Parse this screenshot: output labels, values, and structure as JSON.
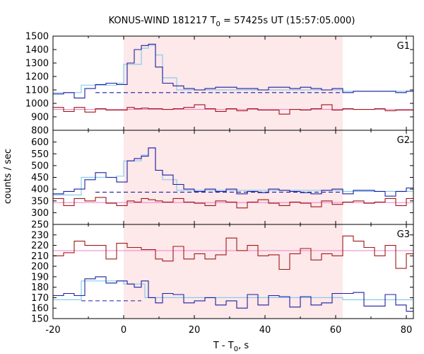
{
  "chart_data": {
    "type": "line",
    "title_main": "KONUS-WIND 181217 T",
    "title_sub": "0",
    "title_rest": " = 57425s UT (15:57:05.000)",
    "xlabel_main": "T - T",
    "xlabel_sub": "0",
    "xlabel_rest": ", s",
    "ylabel": "counts / sec",
    "xlim": [
      -20,
      82
    ],
    "xticks": [
      "-20",
      "0",
      "20",
      "40",
      "60",
      "80"
    ],
    "xtick_values": [
      -20,
      0,
      20,
      40,
      60,
      80
    ],
    "shade_interval": [
      0,
      62
    ],
    "colors": {
      "shade": "#fde8ea",
      "blue": "#1f1fa0",
      "cyan": "#87cdeb",
      "red": "#a01818",
      "pink": "#f080c8",
      "dashed": "#1f1fa0"
    },
    "panels": [
      {
        "label": "G1",
        "ylim": [
          800,
          1500
        ],
        "yticks": [
          "800",
          "900",
          "1000",
          "1100",
          "1200",
          "1300",
          "1400",
          "1500"
        ],
        "ytick_values": [
          800,
          900,
          1000,
          1100,
          1200,
          1300,
          1400,
          1500
        ],
        "blue_edges": [
          -20,
          -17,
          -14,
          -11,
          -8,
          -5,
          -2,
          1,
          3,
          5,
          7,
          9,
          11,
          14,
          17,
          20,
          23,
          26,
          29,
          32,
          35,
          38,
          41,
          44,
          47,
          50,
          53,
          56,
          59,
          62,
          65,
          68,
          71,
          74,
          77,
          80,
          83
        ],
        "blue_values": [
          1070,
          1080,
          1040,
          1110,
          1140,
          1150,
          1140,
          1300,
          1400,
          1430,
          1440,
          1270,
          1150,
          1130,
          1110,
          1100,
          1110,
          1120,
          1120,
          1110,
          1110,
          1100,
          1120,
          1120,
          1110,
          1120,
          1110,
          1100,
          1110,
          1080,
          1090,
          1090,
          1090,
          1090,
          1080,
          1090
        ],
        "cyan_edges": [
          -20,
          -12,
          -2,
          0,
          5,
          7,
          9,
          11,
          15,
          62,
          82
        ],
        "cyan_values": [
          1080,
          1135,
          1150,
          1290,
          1410,
          1430,
          1360,
          1190,
          1100,
          1090,
          1085
        ],
        "dash_range": [
          -8,
          62
        ],
        "dash_value": 1080,
        "red_edges": [
          -20,
          -17,
          -14,
          -11,
          -8,
          -5,
          -2,
          1,
          3,
          5,
          7,
          9,
          11,
          14,
          17,
          20,
          23,
          26,
          29,
          32,
          35,
          38,
          41,
          44,
          47,
          50,
          53,
          56,
          59,
          62,
          65,
          68,
          71,
          74,
          77,
          80,
          83
        ],
        "red_values": [
          970,
          940,
          970,
          935,
          960,
          950,
          950,
          970,
          960,
          965,
          960,
          960,
          955,
          960,
          970,
          990,
          960,
          940,
          960,
          945,
          960,
          950,
          950,
          920,
          955,
          950,
          960,
          990,
          950,
          960,
          955,
          955,
          960,
          945,
          950,
          950
        ],
        "pink_value": 955
      },
      {
        "label": "G2",
        "ylim": [
          250,
          650
        ],
        "yticks": [
          "250",
          "300",
          "350",
          "400",
          "450",
          "500",
          "550",
          "600"
        ],
        "ytick_values": [
          250,
          300,
          350,
          400,
          450,
          500,
          550,
          600
        ],
        "blue_edges": [
          -20,
          -17,
          -14,
          -11,
          -8,
          -5,
          -2,
          1,
          3,
          5,
          7,
          9,
          11,
          14,
          17,
          20,
          23,
          26,
          29,
          32,
          35,
          38,
          41,
          44,
          47,
          50,
          53,
          56,
          59,
          62,
          65,
          68,
          71,
          74,
          77,
          80,
          83
        ],
        "blue_values": [
          380,
          390,
          400,
          440,
          470,
          450,
          430,
          520,
          530,
          540,
          575,
          480,
          460,
          420,
          400,
          390,
          400,
          390,
          400,
          380,
          390,
          385,
          400,
          395,
          390,
          385,
          380,
          395,
          400,
          380,
          395,
          395,
          390,
          370,
          390,
          405
        ],
        "cyan_edges": [
          -20,
          -12,
          -2,
          0,
          5,
          7,
          9,
          11,
          15,
          62,
          82
        ],
        "cyan_values": [
          375,
          450,
          455,
          520,
          545,
          575,
          480,
          440,
          395,
          390,
          388
        ],
        "dash_range": [
          -8,
          62
        ],
        "dash_value": 387,
        "red_edges": [
          -20,
          -17,
          -14,
          -11,
          -8,
          -5,
          -2,
          1,
          3,
          5,
          7,
          9,
          11,
          14,
          17,
          20,
          23,
          26,
          29,
          32,
          35,
          38,
          41,
          44,
          47,
          50,
          53,
          56,
          59,
          62,
          65,
          68,
          71,
          74,
          77,
          80,
          83
        ],
        "red_values": [
          360,
          330,
          360,
          350,
          365,
          340,
          330,
          350,
          345,
          360,
          355,
          350,
          345,
          360,
          345,
          340,
          330,
          350,
          345,
          320,
          345,
          355,
          340,
          330,
          345,
          340,
          325,
          350,
          335,
          345,
          350,
          340,
          345,
          360,
          330,
          360
        ],
        "pink_value": 343
      },
      {
        "label": "G3",
        "ylim": [
          150,
          240
        ],
        "yticks": [
          "150",
          "160",
          "170",
          "180",
          "190",
          "200",
          "210",
          "220",
          "230"
        ],
        "ytick_values": [
          150,
          160,
          170,
          180,
          190,
          200,
          210,
          220,
          230
        ],
        "blue_edges": [
          -20,
          -17,
          -14,
          -11,
          -8,
          -5,
          -2,
          1,
          3,
          5,
          7,
          9,
          11,
          14,
          17,
          20,
          23,
          26,
          29,
          32,
          35,
          38,
          41,
          44,
          47,
          50,
          53,
          56,
          59,
          62,
          65,
          68,
          71,
          74,
          77,
          80,
          83
        ],
        "blue_values": [
          172,
          174,
          172,
          188,
          190,
          184,
          186,
          183,
          180,
          186,
          170,
          165,
          174,
          173,
          165,
          167,
          170,
          163,
          167,
          160,
          173,
          163,
          172,
          171,
          161,
          171,
          163,
          165,
          174,
          174,
          175,
          162,
          162,
          173,
          163,
          157
        ],
        "cyan_edges": [
          -20,
          -12,
          -2,
          0,
          5,
          6,
          62,
          82
        ],
        "cyan_values": [
          168,
          186,
          186,
          183,
          183,
          170,
          168,
          168
        ],
        "dash_range": [
          -12,
          5
        ],
        "dash_value": 167,
        "red_edges": [
          -20,
          -17,
          -14,
          -11,
          -8,
          -5,
          -2,
          1,
          3,
          5,
          7,
          9,
          11,
          14,
          17,
          20,
          23,
          26,
          29,
          32,
          35,
          38,
          41,
          44,
          47,
          50,
          53,
          56,
          59,
          62,
          65,
          68,
          71,
          74,
          77,
          80,
          83
        ],
        "red_values": [
          210,
          213,
          224,
          220,
          220,
          207,
          222,
          218,
          218,
          216,
          216,
          207,
          205,
          219,
          207,
          212,
          207,
          211,
          227,
          215,
          220,
          210,
          211,
          197,
          212,
          217,
          206,
          212,
          210,
          229,
          224,
          218,
          210,
          220,
          198,
          212
        ],
        "pink_value": 215
      }
    ]
  }
}
